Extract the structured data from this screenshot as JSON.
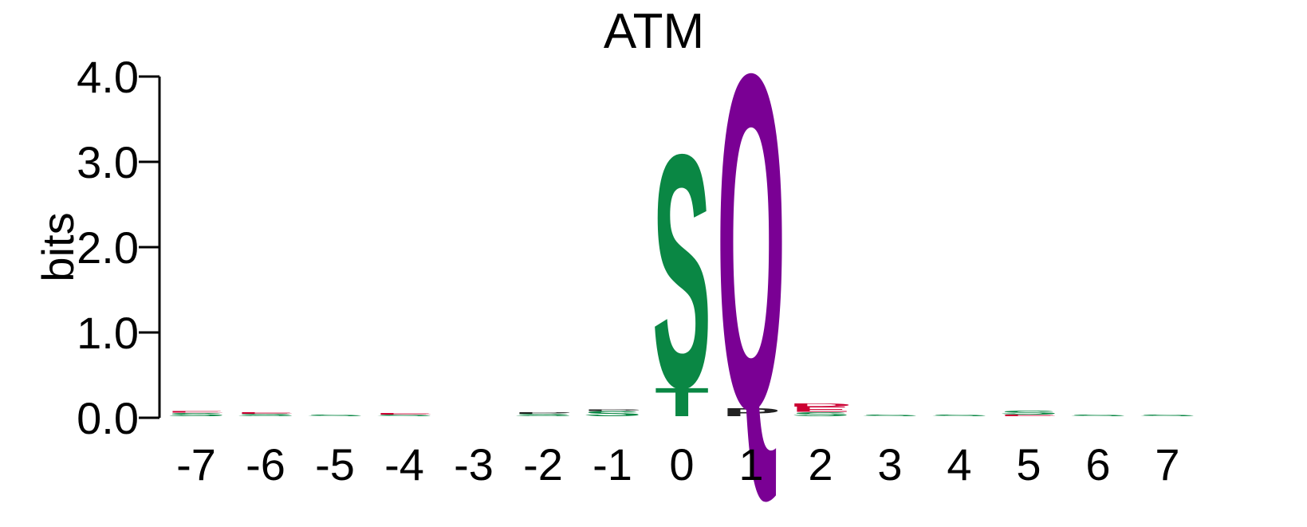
{
  "chart_data": {
    "type": "sequence-logo",
    "title": "ATM",
    "ylabel": "bits",
    "ylim": [
      0,
      4.0
    ],
    "yticks": [
      "0.0",
      "1.0",
      "2.0",
      "3.0",
      "4.0"
    ],
    "ytick_values": [
      0,
      1,
      2,
      3,
      4
    ],
    "positions": [
      "-7",
      "-6",
      "-5",
      "-4",
      "-3",
      "-2",
      "-1",
      "0",
      "1",
      "2",
      "3",
      "4",
      "5",
      "6",
      "7"
    ],
    "colors": {
      "S": "#0a8744",
      "T": "#0a8744",
      "Q": "#7a0094",
      "P": "#222222",
      "E": "#cc0033",
      "D": "#cc0033"
    },
    "columns": [
      {
        "position": "-7",
        "letters": [
          {
            "residue": "S",
            "bits": 0.04
          },
          {
            "residue": "E",
            "bits": 0.02
          }
        ]
      },
      {
        "position": "-6",
        "letters": [
          {
            "residue": "S",
            "bits": 0.03
          },
          {
            "residue": "E",
            "bits": 0.02
          }
        ]
      },
      {
        "position": "-5",
        "letters": [
          {
            "residue": "S",
            "bits": 0.02
          }
        ]
      },
      {
        "position": "-4",
        "letters": [
          {
            "residue": "S",
            "bits": 0.02
          },
          {
            "residue": "E",
            "bits": 0.02
          }
        ]
      },
      {
        "position": "-3",
        "letters": []
      },
      {
        "position": "-2",
        "letters": [
          {
            "residue": "S",
            "bits": 0.03
          },
          {
            "residue": "P",
            "bits": 0.02
          }
        ]
      },
      {
        "position": "-1",
        "letters": [
          {
            "residue": "S",
            "bits": 0.06
          },
          {
            "residue": "P",
            "bits": 0.02
          }
        ]
      },
      {
        "position": "0",
        "letters": [
          {
            "residue": "T",
            "bits": 0.35
          },
          {
            "residue": "S",
            "bits": 2.85
          }
        ]
      },
      {
        "position": "1",
        "letters": [
          {
            "residue": "P",
            "bits": 0.1
          },
          {
            "residue": "Q",
            "bits": 4.1
          }
        ]
      },
      {
        "position": "2",
        "letters": [
          {
            "residue": "S",
            "bits": 0.05
          },
          {
            "residue": "E",
            "bits": 0.06
          },
          {
            "residue": "D",
            "bits": 0.04
          }
        ]
      },
      {
        "position": "3",
        "letters": [
          {
            "residue": "S",
            "bits": 0.02
          }
        ]
      },
      {
        "position": "4",
        "letters": [
          {
            "residue": "S",
            "bits": 0.02
          }
        ]
      },
      {
        "position": "5",
        "letters": [
          {
            "residue": "E",
            "bits": 0.02
          },
          {
            "residue": "S",
            "bits": 0.05
          }
        ]
      },
      {
        "position": "6",
        "letters": [
          {
            "residue": "S",
            "bits": 0.02
          }
        ]
      },
      {
        "position": "7",
        "letters": [
          {
            "residue": "S",
            "bits": 0.02
          }
        ]
      }
    ]
  }
}
